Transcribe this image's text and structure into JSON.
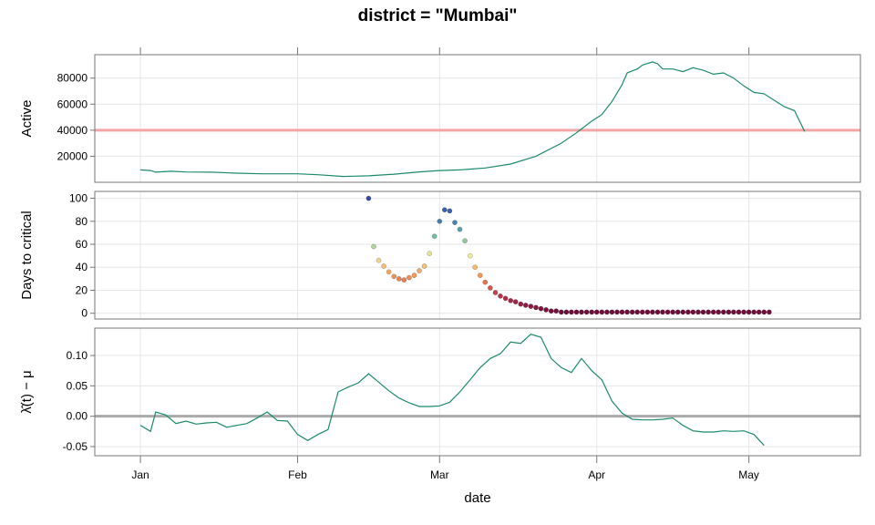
{
  "chart_data": {
    "type": "line",
    "title": "district = \"Mumbai\"",
    "xlabel": "date",
    "x_ticks": [
      "Jan",
      "Feb",
      "Mar",
      "Apr",
      "May"
    ],
    "x_tick_dates": [
      "2021-01-01",
      "2021-02-01",
      "2021-03-01",
      "2021-04-01",
      "2021-05-01"
    ],
    "xlim": [
      "2020-12-23",
      "2021-05-23"
    ],
    "grid": true,
    "colors": {
      "line": "#1b8a6b",
      "threshold": "#f4a6a6",
      "zero_line": "#aaaaaa",
      "frame": "#777777",
      "grid": "#e6e6e6"
    },
    "panels": [
      {
        "id": "active",
        "ylabel": "Active",
        "type": "line",
        "ylim": [
          0,
          98000
        ],
        "y_ticks": [
          20000,
          40000,
          60000,
          80000
        ],
        "y_tick_labels": [
          "20000",
          "40000",
          "60000",
          "80000"
        ],
        "reference_line": 40000,
        "series": [
          {
            "x": [
              "2021-01-01",
              "2021-01-03",
              "2021-01-04",
              "2021-01-07",
              "2021-01-10",
              "2021-01-15",
              "2021-01-20",
              "2021-01-25",
              "2021-02-01",
              "2021-02-05",
              "2021-02-10",
              "2021-02-12",
              "2021-02-15",
              "2021-02-20",
              "2021-02-25",
              "2021-03-01",
              "2021-03-05",
              "2021-03-10",
              "2021-03-15",
              "2021-03-20",
              "2021-03-25",
              "2021-03-28",
              "2021-03-31",
              "2021-04-02",
              "2021-04-04",
              "2021-04-06",
              "2021-04-07",
              "2021-04-09",
              "2021-04-10",
              "2021-04-12",
              "2021-04-13",
              "2021-04-14",
              "2021-04-16",
              "2021-04-18",
              "2021-04-20",
              "2021-04-22",
              "2021-04-24",
              "2021-04-26",
              "2021-04-28",
              "2021-04-30",
              "2021-05-02",
              "2021-05-04",
              "2021-05-06",
              "2021-05-08",
              "2021-05-10",
              "2021-05-12"
            ],
            "y": [
              9500,
              9000,
              7800,
              8500,
              7900,
              7800,
              7000,
              6500,
              6500,
              5800,
              4500,
              4700,
              5000,
              6200,
              8000,
              9000,
              9500,
              11000,
              14000,
              20000,
              30000,
              38000,
              47000,
              52000,
              62000,
              75000,
              84000,
              87000,
              90000,
              92500,
              91000,
              87000,
              87000,
              85000,
              88000,
              86000,
              83000,
              84000,
              80000,
              74000,
              69000,
              68000,
              63000,
              58000,
              55000,
              39000
            ]
          }
        ]
      },
      {
        "id": "days_to_critical",
        "ylabel": "Days to critical",
        "type": "scatter",
        "ylim": [
          -5,
          106
        ],
        "y_ticks": [
          0,
          20,
          40,
          60,
          80,
          100
        ],
        "y_tick_labels": [
          "0",
          "20",
          "40",
          "60",
          "80",
          "100"
        ],
        "color_scale": [
          "#6a0a3a",
          "#c2374a",
          "#f59a55",
          "#f0e89a",
          "#73c0a0",
          "#3a6fb3",
          "#3a4aa0"
        ],
        "series": [
          {
            "x": [
              "2021-02-15",
              "2021-02-16",
              "2021-02-17",
              "2021-02-18",
              "2021-02-19",
              "2021-02-20",
              "2021-02-21",
              "2021-02-22",
              "2021-02-23",
              "2021-02-24",
              "2021-02-25",
              "2021-02-26",
              "2021-02-27",
              "2021-02-28",
              "2021-03-01",
              "2021-03-02",
              "2021-03-03",
              "2021-03-04",
              "2021-03-05",
              "2021-03-06",
              "2021-03-07",
              "2021-03-08",
              "2021-03-09",
              "2021-03-10",
              "2021-03-11",
              "2021-03-12",
              "2021-03-13",
              "2021-03-14",
              "2021-03-15",
              "2021-03-16",
              "2021-03-17",
              "2021-03-18",
              "2021-03-19",
              "2021-03-20",
              "2021-03-21",
              "2021-03-22",
              "2021-03-23",
              "2021-03-24",
              "2021-03-25",
              "2021-03-26",
              "2021-03-27",
              "2021-03-28",
              "2021-03-29",
              "2021-03-30",
              "2021-03-31",
              "2021-04-01",
              "2021-04-02",
              "2021-04-03",
              "2021-04-04",
              "2021-04-05",
              "2021-04-06",
              "2021-04-07",
              "2021-04-08",
              "2021-04-09",
              "2021-04-10",
              "2021-04-11",
              "2021-04-12",
              "2021-04-13",
              "2021-04-14",
              "2021-04-15",
              "2021-04-16",
              "2021-04-17",
              "2021-04-18",
              "2021-04-19",
              "2021-04-20",
              "2021-04-21",
              "2021-04-22",
              "2021-04-23",
              "2021-04-24",
              "2021-04-25",
              "2021-04-26",
              "2021-04-27",
              "2021-04-28",
              "2021-04-29",
              "2021-04-30",
              "2021-05-01",
              "2021-05-02",
              "2021-05-03",
              "2021-05-04",
              "2021-05-05"
            ],
            "y": [
              100,
              58,
              46,
              41,
              36,
              32,
              30,
              29,
              31,
              33,
              37,
              41,
              52,
              67,
              80,
              90,
              89,
              79,
              73,
              63,
              50,
              40,
              33,
              27,
              22,
              18,
              15,
              13,
              11,
              10,
              8,
              7,
              6,
              5,
              4,
              3,
              2,
              2,
              1,
              1,
              1,
              1,
              1,
              1,
              1,
              1,
              1,
              1,
              1,
              1,
              1,
              1,
              1,
              1,
              1,
              1,
              1,
              1,
              1,
              1,
              1,
              1,
              1,
              1,
              1,
              1,
              1,
              1,
              1,
              1,
              1,
              1,
              1,
              1,
              1,
              1,
              1,
              1,
              1,
              1
            ]
          }
        ]
      },
      {
        "id": "lambda",
        "ylabel": "λ̂(t) − μ",
        "type": "line",
        "ylim": [
          -0.065,
          0.145
        ],
        "y_ticks": [
          -0.05,
          0.0,
          0.05,
          0.1
        ],
        "y_tick_labels": [
          "-0.05",
          "0.00",
          "0.05",
          "0.10"
        ],
        "reference_line": 0.0,
        "series": [
          {
            "x": [
              "2021-01-01",
              "2021-01-03",
              "2021-01-04",
              "2021-01-06",
              "2021-01-08",
              "2021-01-10",
              "2021-01-12",
              "2021-01-14",
              "2021-01-16",
              "2021-01-18",
              "2021-01-20",
              "2021-01-22",
              "2021-01-24",
              "2021-01-26",
              "2021-01-28",
              "2021-01-30",
              "2021-02-01",
              "2021-02-03",
              "2021-02-05",
              "2021-02-07",
              "2021-02-09",
              "2021-02-11",
              "2021-02-13",
              "2021-02-15",
              "2021-02-17",
              "2021-02-19",
              "2021-02-21",
              "2021-02-23",
              "2021-02-25",
              "2021-02-27",
              "2021-03-01",
              "2021-03-03",
              "2021-03-05",
              "2021-03-07",
              "2021-03-09",
              "2021-03-11",
              "2021-03-13",
              "2021-03-15",
              "2021-03-17",
              "2021-03-19",
              "2021-03-21",
              "2021-03-23",
              "2021-03-25",
              "2021-03-27",
              "2021-03-29",
              "2021-03-31",
              "2021-04-02",
              "2021-04-04",
              "2021-04-06",
              "2021-04-08",
              "2021-04-10",
              "2021-04-12",
              "2021-04-14",
              "2021-04-16",
              "2021-04-18",
              "2021-04-20",
              "2021-04-22",
              "2021-04-24",
              "2021-04-26",
              "2021-04-28",
              "2021-04-30",
              "2021-05-02",
              "2021-05-04"
            ],
            "y": [
              -0.015,
              -0.025,
              0.007,
              0.002,
              -0.012,
              -0.008,
              -0.013,
              -0.011,
              -0.01,
              -0.018,
              -0.015,
              -0.012,
              -0.003,
              0.007,
              -0.007,
              -0.008,
              -0.03,
              -0.04,
              -0.03,
              -0.022,
              0.04,
              0.048,
              0.055,
              0.07,
              0.056,
              0.042,
              0.03,
              0.022,
              0.016,
              0.016,
              0.017,
              0.023,
              0.04,
              0.06,
              0.08,
              0.095,
              0.103,
              0.122,
              0.12,
              0.135,
              0.13,
              0.095,
              0.08,
              0.072,
              0.095,
              0.075,
              0.06,
              0.025,
              0.005,
              -0.005,
              -0.006,
              -0.006,
              -0.005,
              -0.003,
              -0.015,
              -0.024,
              -0.026,
              -0.026,
              -0.024,
              -0.025,
              -0.024,
              -0.03,
              -0.048
            ]
          }
        ]
      }
    ]
  }
}
